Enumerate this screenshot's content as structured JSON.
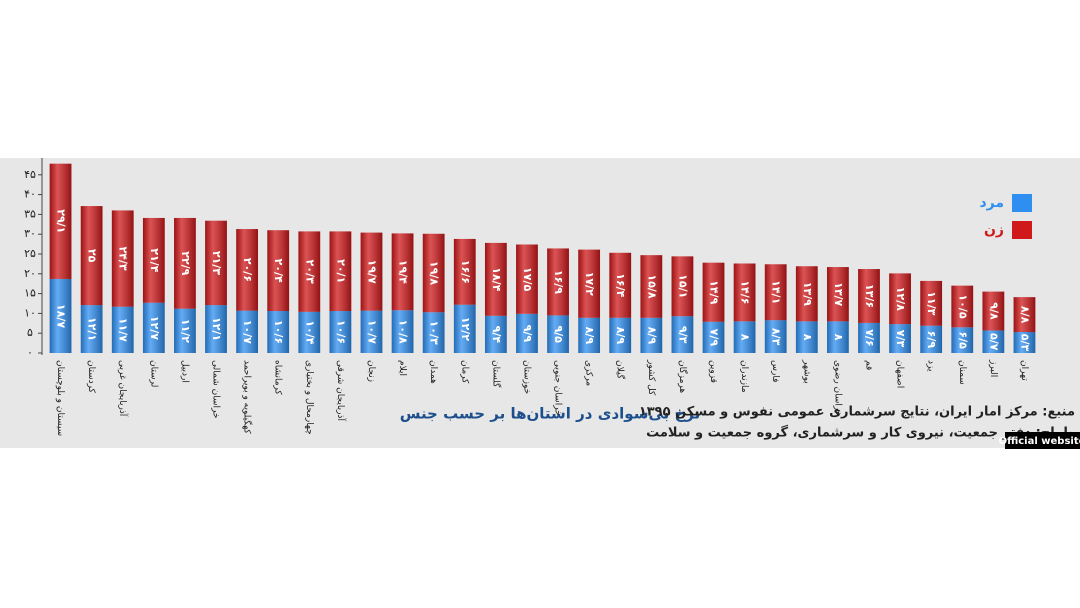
{
  "chart_data": {
    "type": "stacked_bar",
    "title": "نرخ بی‌سوادی در استان‌ها بر حسب جنس",
    "annotations": [
      "منبع: مرکز امار ایران، نتایج سرشماری عمومی نفوس و مسکن ۱۳۹۵",
      "طراح: دفتر جمعیت، نیروی کار و سرشماری، گروه جمعیت و سلامت"
    ],
    "categories": [
      "سیستان و بلوچستان",
      "کردستان",
      "آذربایجان غربی",
      "لرستان",
      "اردبیل",
      "خراسان شمالی",
      "کهگیلویه و بویراحمد",
      "کرمانشاه",
      "چهارمحال و بختیاری",
      "آذربایجان شرقی",
      "زنجان",
      "ایلام",
      "همدان",
      "کرمان",
      "گلستان",
      "خوزستان",
      "خراسان جنوبی",
      "مرکزی",
      "گیلان",
      "کل کشور",
      "هرمزگان",
      "قزوین",
      "مازندران",
      "فارس",
      "بوشهر",
      "خراسان رضوی",
      "قم",
      "اصفهان",
      "یزد",
      "سمنان",
      "البرز",
      "تهران"
    ],
    "series": [
      {
        "name": "مرد",
        "color": "#2f8ff0",
        "values": [
          18.7,
          12.1,
          11.7,
          12.7,
          11.2,
          12.1,
          10.7,
          10.6,
          10.4,
          10.6,
          10.7,
          10.8,
          10.3,
          12.2,
          9.4,
          9.9,
          9.5,
          8.9,
          8.9,
          8.9,
          9.3,
          7.9,
          8,
          8.3,
          8,
          8,
          7.6,
          7.3,
          6.9,
          6.5,
          5.7,
          5.3
        ],
        "value_labels": [
          "۱۸/۷",
          "۱۲/۱",
          "۱۱/۷",
          "۱۲/۷",
          "۱۱/۲",
          "۱۲/۱",
          "۱۰/۷",
          "۱۰/۶",
          "۱۰/۴",
          "۱۰/۶",
          "۱۰/۷",
          "۱۰/۸",
          "۱۰/۳",
          "۱۲/۲",
          "۹/۴",
          "۹/۹",
          "۹/۵",
          "۸/۹",
          "۸/۹",
          "۸/۹",
          "۹/۳",
          "۷/۹",
          "۸",
          "۸/۳",
          "۸",
          "۸",
          "۷/۶",
          "۷/۳",
          "۶/۹",
          "۶/۵",
          "۵/۷",
          "۵/۳"
        ]
      },
      {
        "name": "زن",
        "color": "#d0191b",
        "values": [
          29.1,
          25,
          24.3,
          21.4,
          22.9,
          21.3,
          20.6,
          20.4,
          20.3,
          20.1,
          19.7,
          19.4,
          19.8,
          16.6,
          18.4,
          17.5,
          16.9,
          17.2,
          16.4,
          15.8,
          15.1,
          14.9,
          14.6,
          14.1,
          13.9,
          13.7,
          13.6,
          12.8,
          11.3,
          10.5,
          9.8,
          8.8
        ],
        "value_labels": [
          "۲۹/۱",
          "۲۵",
          "۲۴/۳",
          "۲۱/۴",
          "۲۲/۹",
          "۲۱/۳",
          "۲۰/۶",
          "۲۰/۴",
          "۲۰/۳",
          "۲۰/۱",
          "۱۹/۷",
          "۱۹/۴",
          "۱۹/۸",
          "۱۶/۶",
          "۱۸/۴",
          "۱۷/۵",
          "۱۶/۹",
          "۱۷/۲",
          "۱۶/۴",
          "۱۵/۸",
          "۱۵/۱",
          "۱۴/۹",
          "۱۴/۶",
          "۱۴/۱",
          "۱۳/۹",
          "۱۳/۷",
          "۱۳/۶",
          "۱۲/۸",
          "۱۱/۳",
          "۱۰/۵",
          "۹/۸",
          "۸/۸"
        ]
      }
    ],
    "ylim": [
      0,
      50
    ],
    "yticks": [
      {
        "value": 0,
        "label": "۰"
      },
      {
        "value": 5,
        "label": "۵"
      },
      {
        "value": 10,
        "label": "۱۰"
      },
      {
        "value": 15,
        "label": "۱۵"
      },
      {
        "value": 20,
        "label": "۲۰"
      },
      {
        "value": 25,
        "label": "۲۵"
      },
      {
        "value": 30,
        "label": "۳۰"
      },
      {
        "value": 35,
        "label": "۳۵"
      },
      {
        "value": 40,
        "label": "۴۰"
      },
      {
        "value": 45,
        "label": "۴۵"
      }
    ],
    "legend": "upper right"
  },
  "badge": "Official website"
}
